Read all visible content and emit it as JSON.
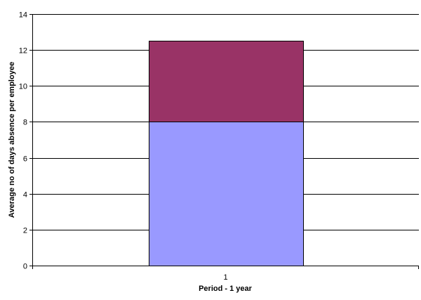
{
  "chart_data": {
    "type": "bar",
    "stacked": true,
    "categories": [
      "1"
    ],
    "series": [
      {
        "values": [
          8
        ],
        "color": "#9999FF"
      },
      {
        "values": [
          4.5
        ],
        "color": "#993366"
      }
    ],
    "xlabel": "Period - 1 year",
    "ylabel": "Average no of days absence per employee",
    "ylim": [
      0,
      14
    ],
    "yticks": [
      0,
      2,
      4,
      6,
      8,
      10,
      12,
      14
    ],
    "grid": true,
    "legend": "none"
  }
}
